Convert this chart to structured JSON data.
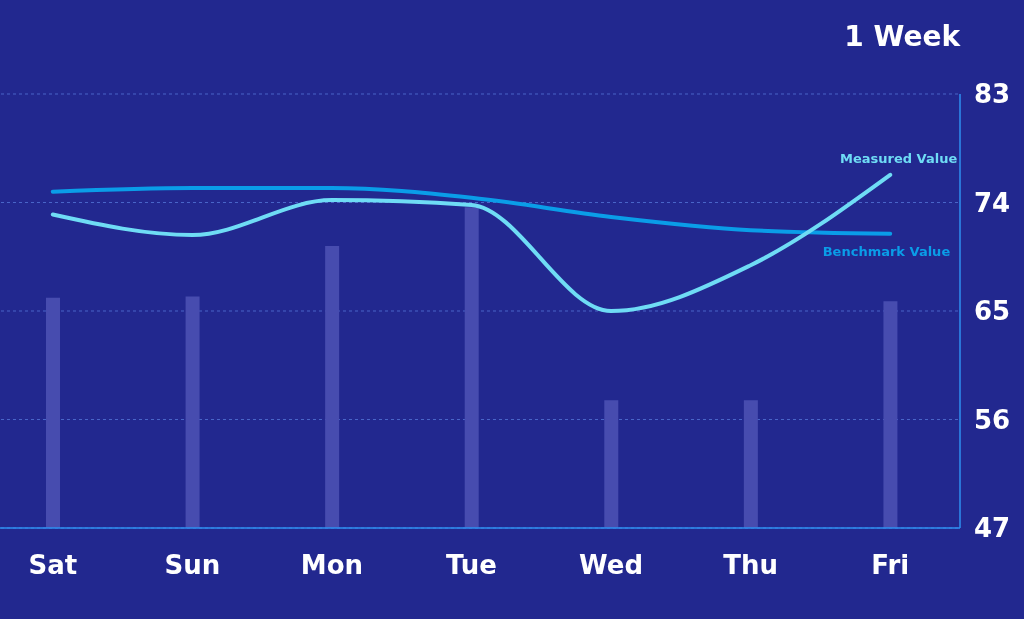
{
  "chart_data": {
    "type": "line",
    "title": "1 Week",
    "categories": [
      "Sat",
      "Sun",
      "Mon",
      "Tue",
      "Wed",
      "Thu",
      "Fri"
    ],
    "series": [
      {
        "type": "bar",
        "color": "#474caf",
        "values": [
          66.1,
          66.2,
          70.4,
          73.6,
          57.6,
          57.6,
          65.8
        ]
      },
      {
        "name": "Benchmark Value",
        "color": "#0a9de8",
        "values": [
          74.9,
          75.2,
          75.2,
          74.4,
          72.8,
          71.7,
          71.4
        ]
      },
      {
        "name": "Measured Value",
        "color": "#6fdcf5",
        "values": [
          73.0,
          71.3,
          74.2,
          73.8,
          65.0,
          68.8,
          76.3
        ]
      }
    ],
    "ylim": [
      47,
      83
    ],
    "yticks": [
      47,
      56,
      65,
      74,
      83
    ],
    "grid": "y",
    "legend": false,
    "marker": "none",
    "line_style": "solid"
  }
}
